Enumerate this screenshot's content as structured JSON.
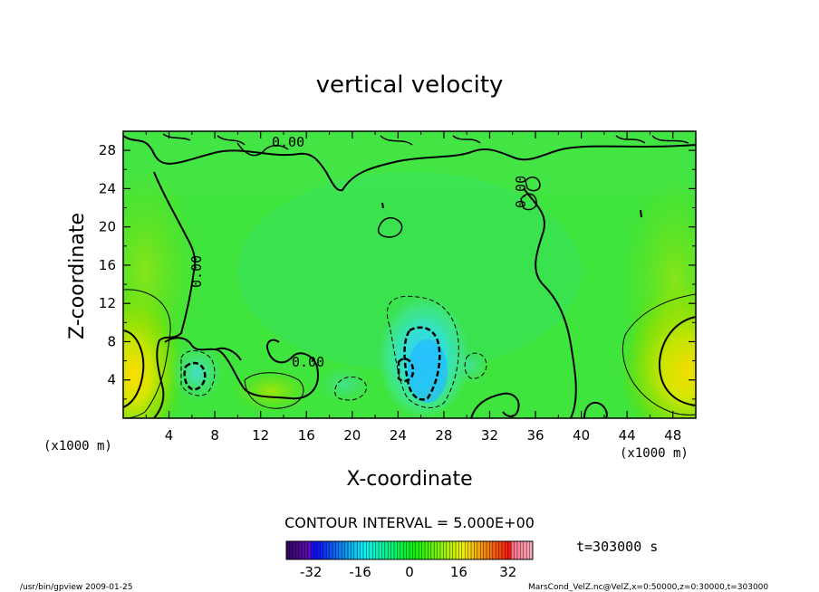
{
  "chart_data": {
    "type": "heatmap",
    "title": "vertical velocity",
    "xlabel": "X-coordinate",
    "ylabel": "Z-coordinate",
    "x_unit": "(x1000 m)",
    "y_unit": "(x1000 m)",
    "xlim": [
      0,
      50
    ],
    "ylim": [
      0,
      30
    ],
    "x_ticks": [
      "4",
      "8",
      "12",
      "16",
      "20",
      "24",
      "28",
      "32",
      "36",
      "40",
      "44",
      "48"
    ],
    "y_ticks": [
      "4",
      "8",
      "12",
      "16",
      "20",
      "24",
      "28"
    ],
    "contour_interval_text": "CONTOUR INTERVAL = 5.000E+00",
    "contour_labels": [
      "0.00",
      "0.00",
      "0.00",
      "0.00"
    ],
    "time_text": "t=303000 s",
    "colorbar": {
      "min": -40,
      "max": 40,
      "tick_labels": [
        "-32",
        "-16",
        "0",
        "16",
        "32"
      ],
      "tick_values": [
        -32,
        -16,
        0,
        16,
        32
      ]
    },
    "features": [
      {
        "kind": "updraft",
        "x": 1,
        "z": 4.5,
        "value": 15
      },
      {
        "kind": "updraft",
        "x": 49,
        "z": 4.5,
        "value": 15
      },
      {
        "kind": "downdraft",
        "x": 26,
        "z": 5,
        "value": -20
      },
      {
        "kind": "downdraft",
        "x": 6.5,
        "z": 4,
        "value": -10
      }
    ]
  },
  "footer": {
    "left": "/usr/bin/gpview   2009-01-25",
    "right": "MarsCond_VelZ.nc@VelZ,x=0:50000,z=0:30000,t=303000"
  }
}
